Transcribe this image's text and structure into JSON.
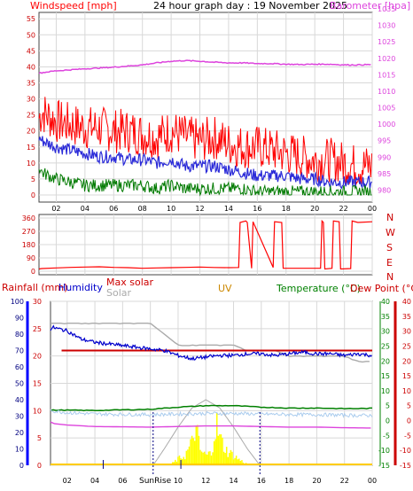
{
  "header": {
    "windspeed_label": "Windspeed [mph]",
    "title": "24 hour graph day : 19 November 2025",
    "barometer_label": "Barometer [hpa]"
  },
  "legend": {
    "rainfall": "Rainfall (mm)",
    "humidity": "Humidity",
    "max_solar": "Max solar",
    "solar": "Solar",
    "uv": "UV",
    "temperature": "Temperature (°C)",
    "dew_point": "Dew Point (°C)",
    "sunrise": "SunRise"
  },
  "direction_letters": [
    "N",
    "W",
    "S",
    "E",
    "N"
  ],
  "colors": {
    "wind": "#ff0000",
    "gust_band": "#ff0000",
    "wind_avg": "#2a2ad8",
    "wind_low": "#007a00",
    "barometer": "#dd44dd",
    "rain_axis": "#0000ff",
    "humidity": "#0000cc",
    "temperature": "#008000",
    "dew_point": "#cc0000",
    "solar": "#aaaaaa",
    "solar_fill": "#ffff00",
    "uv": "#cc8800",
    "grid": "#d8d8d8"
  },
  "chart_data": [
    {
      "type": "line",
      "name": "wind-barometer",
      "title": "24 hour graph day : 19 November 2025",
      "x_ticks": [
        "02",
        "04",
        "06",
        "08",
        "10",
        "12",
        "14",
        "16",
        "18",
        "20",
        "22",
        "00"
      ],
      "y_left_label": "Windspeed [mph]",
      "y_left_ticks": [
        0,
        5,
        10,
        15,
        20,
        25,
        30,
        35,
        40,
        45,
        50,
        55
      ],
      "y_left_range": [
        0,
        57
      ],
      "y_right_label": "Barometer [hpa]",
      "y_right_ticks": [
        980,
        985,
        990,
        995,
        1000,
        1005,
        1010,
        1015,
        1020,
        1025,
        1030,
        1035
      ],
      "y_right_range": [
        978.5,
        1035
      ],
      "x_range": [
        0.8,
        24
      ],
      "series": [
        {
          "name": "Barometer",
          "x": [
            0.8,
            2,
            4,
            6,
            8,
            9,
            10,
            11,
            12,
            13,
            14,
            15,
            16,
            17,
            18,
            19,
            20,
            21,
            22,
            23,
            24
          ],
          "values": [
            1015.5,
            1016.2,
            1016.8,
            1017.3,
            1018.0,
            1018.6,
            1019.1,
            1019.3,
            1019.1,
            1018.8,
            1018.6,
            1018.6,
            1018.4,
            1018.4,
            1018.2,
            1018.1,
            1018.2,
            1018.2,
            1018.0,
            1018.0,
            1018.1
          ]
        },
        {
          "name": "Wind gust",
          "x": [
            0.8,
            1,
            2,
            3,
            4,
            5,
            6,
            7,
            8,
            9,
            10,
            11,
            12,
            13,
            14,
            15,
            16,
            17,
            18,
            19,
            20,
            21,
            22,
            23,
            24
          ],
          "values": [
            24,
            26,
            23,
            22,
            21,
            21,
            20,
            20,
            19,
            18,
            20,
            18,
            17,
            18,
            16,
            15,
            15,
            14,
            13,
            12,
            11,
            11,
            10,
            9,
            9
          ]
        },
        {
          "name": "Wind speed",
          "x": [
            0.8,
            1,
            2,
            3,
            4,
            5,
            6,
            7,
            8,
            9,
            10,
            11,
            12,
            13,
            14,
            15,
            16,
            17,
            18,
            19,
            20,
            21,
            22,
            23,
            24
          ],
          "values": [
            18,
            17,
            15,
            14,
            13,
            12,
            12,
            11,
            11,
            10,
            11,
            9,
            9,
            9,
            8,
            7,
            6,
            6,
            6,
            5,
            5,
            4,
            4,
            4,
            4
          ]
        },
        {
          "name": "Wind low",
          "x": [
            0.8,
            1,
            2,
            3,
            4,
            5,
            6,
            7,
            8,
            9,
            10,
            11,
            12,
            13,
            14,
            15,
            16,
            17,
            18,
            19,
            20,
            21,
            22,
            23,
            24
          ],
          "values": [
            9,
            7,
            5,
            4,
            3,
            3,
            3,
            3,
            3,
            2,
            3,
            2,
            2,
            2,
            2,
            2,
            1,
            1,
            1,
            1,
            1,
            1,
            1,
            1,
            1
          ]
        }
      ]
    },
    {
      "type": "line",
      "name": "wind-direction",
      "y_ticks": [
        0,
        45,
        90,
        135,
        180,
        225,
        270,
        315,
        360
      ],
      "y_ticks_shown": [
        0,
        45,
        90,
        135,
        180,
        225,
        270,
        315,
        360
      ],
      "y_range": [
        0,
        360
      ],
      "x_range": [
        0.8,
        24
      ],
      "series": [
        {
          "name": "Wind direction",
          "x": [
            0.8,
            1,
            2,
            3,
            4,
            5,
            6,
            7,
            8,
            9,
            10,
            11,
            12,
            13,
            14,
            14.7,
            14.8,
            15.2,
            15.3,
            15.6,
            15.7,
            17.1,
            17.2,
            17.7,
            17.8,
            20.4,
            20.5,
            20.6,
            20.7,
            21.2,
            21.3,
            21.7,
            21.8,
            22.5,
            22.6,
            23,
            24
          ],
          "values": [
            15,
            18,
            22,
            26,
            28,
            30,
            26,
            24,
            20,
            22,
            24,
            26,
            28,
            25,
            24,
            25,
            330,
            340,
            330,
            20,
            335,
            25,
            335,
            330,
            20,
            20,
            340,
            330,
            15,
            20,
            340,
            335,
            15,
            18,
            340,
            330,
            335
          ]
        }
      ]
    },
    {
      "type": "line",
      "name": "rain-humidity-temperature-solar",
      "x_ticks": [
        "02",
        "04",
        "06",
        "08",
        "10",
        "12",
        "14",
        "16",
        "18",
        "20",
        "22",
        "00"
      ],
      "axes": {
        "left_outer": {
          "label": "Rainfall (mm)",
          "ticks": [
            0,
            10,
            20,
            30,
            40,
            50,
            60,
            70,
            80,
            90,
            100
          ]
        },
        "left_inner": {
          "label": "Humidity",
          "ticks": [
            0,
            5,
            10,
            15,
            20,
            25,
            30
          ]
        },
        "right_inner": {
          "label": "Temperature (°C)",
          "ticks": [
            -15,
            -10,
            -5,
            0,
            5,
            10,
            15,
            20,
            25,
            30,
            35,
            40
          ]
        },
        "right_outer": {
          "label": "Dew Point (°C)",
          "ticks": [
            -15,
            -10,
            -5,
            0,
            5,
            10,
            15,
            20,
            25,
            30,
            35,
            40
          ]
        }
      },
      "series": [
        {
          "name": "Humidity",
          "x": [
            0.8,
            1,
            2,
            3,
            4,
            5,
            6,
            7,
            8,
            9,
            10,
            11,
            12,
            13,
            14,
            15,
            16,
            17,
            18,
            19,
            20,
            21,
            22,
            23,
            24
          ],
          "values": [
            83,
            84,
            82,
            77,
            75,
            74,
            73,
            72,
            71,
            70,
            67,
            65,
            66,
            67,
            67,
            68,
            68,
            67,
            68,
            69,
            68,
            68,
            67,
            68,
            67
          ]
        },
        {
          "name": "Max humidity",
          "x": [
            0.8,
            24
          ],
          "values": [
            70,
            70
          ]
        },
        {
          "name": "Solar",
          "x": [
            0.8,
            6,
            8,
            9,
            10,
            12,
            14,
            15,
            16,
            17,
            18,
            19,
            20,
            21,
            22,
            23,
            24
          ],
          "values": [
            26,
            26,
            26,
            24,
            22,
            22,
            22,
            21,
            21,
            21,
            20,
            20,
            20,
            20,
            20,
            19,
            19
          ]
        },
        {
          "name": "Temperature",
          "x": [
            0.8,
            2,
            4,
            6,
            8,
            10,
            12,
            14,
            16,
            18,
            20,
            22,
            24
          ],
          "values": [
            3.5,
            3.5,
            3.4,
            3.6,
            3.8,
            4.5,
            5.0,
            5.0,
            4.5,
            4.2,
            4.2,
            4.0,
            4.1
          ]
        },
        {
          "name": "Dew point",
          "x": [
            0.8,
            1,
            2,
            4,
            6,
            8,
            10,
            12,
            14,
            16,
            18,
            20,
            22,
            24
          ],
          "values": [
            -1.5,
            -2.0,
            -2.5,
            -3.0,
            -3.1,
            -3.2,
            -3.0,
            -2.8,
            -2.8,
            -3.0,
            -3.2,
            -3.2,
            -3.4,
            -3.5
          ]
        },
        {
          "name": "Max solar",
          "x": [
            8.2,
            9,
            10,
            11,
            12,
            13,
            14,
            15,
            15.9
          ],
          "values": [
            0,
            60,
            140,
            210,
            240,
            210,
            140,
            60,
            0
          ]
        },
        {
          "name": "Solar radiation",
          "x": [
            9.5,
            10,
            10.5,
            11,
            11.2,
            11.4,
            11.6,
            12,
            12.4,
            12.6,
            12.8,
            13,
            13.5,
            14,
            14.5,
            15
          ],
          "values": [
            5,
            25,
            40,
            90,
            150,
            120,
            60,
            40,
            50,
            140,
            160,
            110,
            60,
            40,
            20,
            5
          ]
        }
      ],
      "marker": {
        "label": "SunRise",
        "time": 8.2
      }
    }
  ]
}
